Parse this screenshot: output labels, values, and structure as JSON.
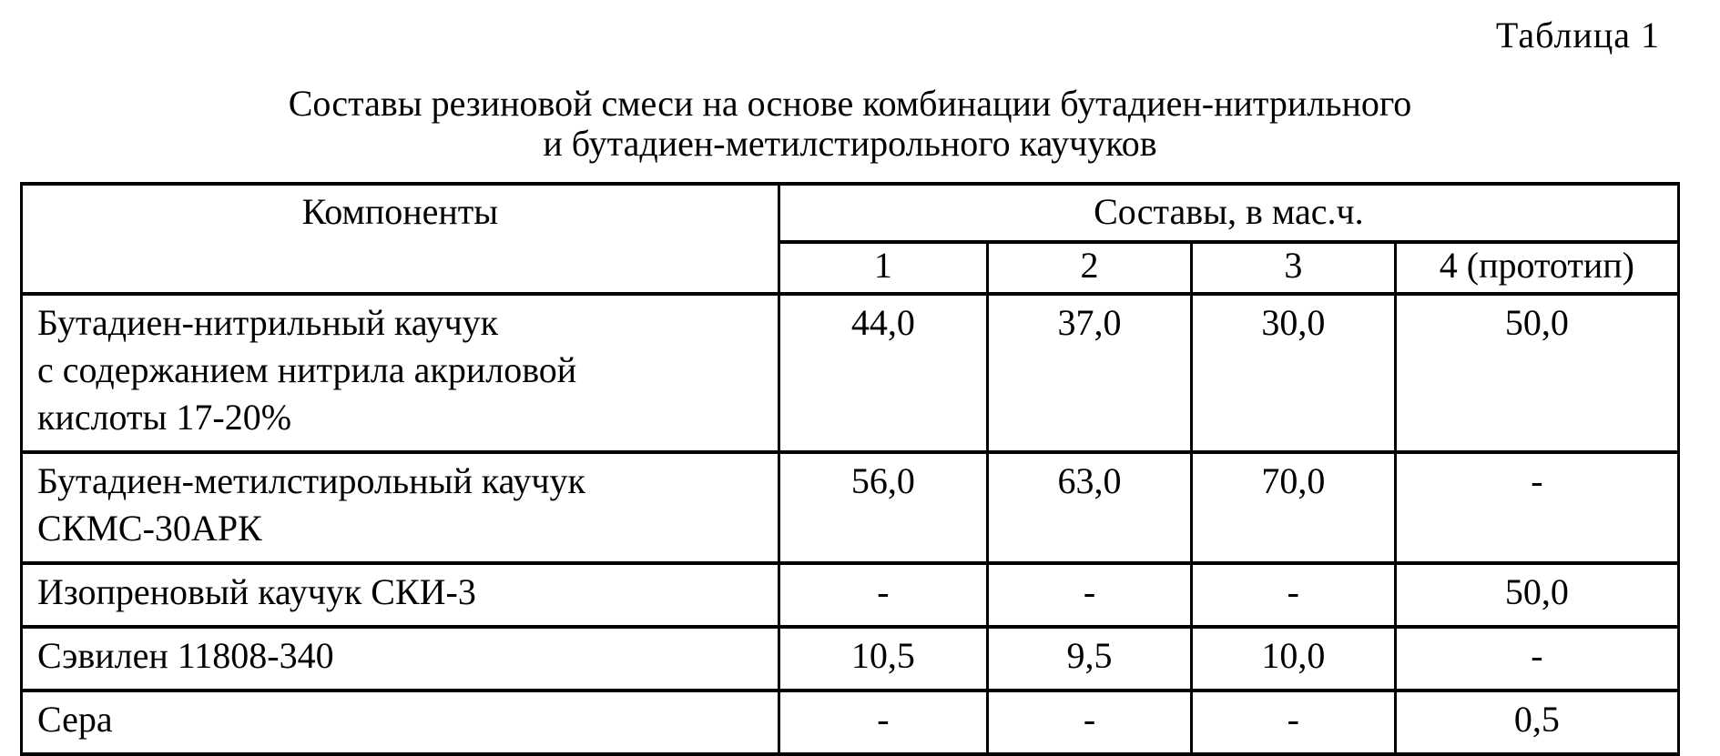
{
  "page": {
    "table_label": "Таблица 1",
    "title_line1": "Составы резиновой смеси на основе комбинации бутадиен-нитрильного",
    "title_line2": "и бутадиен-метилстирольного каучуков"
  },
  "table": {
    "components_header": "Компоненты",
    "compositions_header": "Составы, в мас.ч.",
    "composition_columns": [
      "1",
      "2",
      "3",
      "4 (прототип)"
    ],
    "rows": [
      {
        "component": "Бутадиен-нитрильный каучук\nс содержанием нитрила акриловой\nкислоты 17-20%",
        "values": [
          "44,0",
          "37,0",
          "30,0",
          "50,0"
        ]
      },
      {
        "component": "Бутадиен-метилстирольный каучук\nСКМС-30АРК",
        "values": [
          "56,0",
          "63,0",
          "70,0",
          "-"
        ]
      },
      {
        "component": "Изопреновый каучук СКИ-3",
        "values": [
          "-",
          "-",
          "-",
          "50,0"
        ]
      },
      {
        "component": "Сэвилен 11808-340",
        "values": [
          "10,5",
          "9,5",
          "10,0",
          "-"
        ]
      },
      {
        "component": "Сера",
        "values": [
          "-",
          "-",
          "-",
          "0,5"
        ]
      }
    ]
  }
}
